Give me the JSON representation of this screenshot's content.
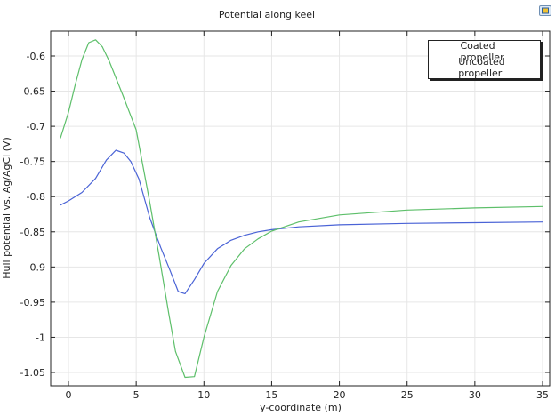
{
  "header": {
    "title": "Potential along keel",
    "export_icon": "image-export-icon"
  },
  "chart_data": {
    "type": "line",
    "title": "Potential along keel",
    "xlabel": "y-coordinate (m)",
    "ylabel": "Hull potential vs. Ag/AgCl (V)",
    "xlim": [
      -1.3,
      35.5
    ],
    "ylim": [
      -1.07,
      -0.565
    ],
    "xticks": [
      0,
      5,
      10,
      15,
      20,
      25,
      30,
      35
    ],
    "yticks": [
      -0.6,
      -0.65,
      -0.7,
      -0.75,
      -0.8,
      -0.85,
      -0.9,
      -0.95,
      -1,
      -1.05
    ],
    "grid": true,
    "legend_position": "upper right",
    "series": [
      {
        "name": "Coated propeller",
        "color": "#4a63d6",
        "x": [
          -0.6,
          0,
          1,
          2,
          2.8,
          3.5,
          4.1,
          4.6,
          5.2,
          6,
          6.8,
          7.5,
          8.1,
          8.6,
          9.3,
          10,
          11,
          12,
          13,
          14,
          15,
          17,
          20,
          25,
          30,
          35
        ],
        "y": [
          -0.812,
          -0.806,
          -0.794,
          -0.774,
          -0.748,
          -0.734,
          -0.738,
          -0.75,
          -0.775,
          -0.83,
          -0.872,
          -0.905,
          -0.935,
          -0.938,
          -0.918,
          -0.895,
          -0.874,
          -0.862,
          -0.855,
          -0.85,
          -0.847,
          -0.843,
          -0.84,
          -0.838,
          -0.837,
          -0.836
        ]
      },
      {
        "name": "Uncoated propeller",
        "color": "#5dbf6a",
        "x": [
          -0.6,
          0,
          0.5,
          1,
          1.5,
          2,
          2.5,
          3,
          4,
          5,
          6,
          6.7,
          7.4,
          7.9,
          8.6,
          9.3,
          10,
          11,
          12,
          13,
          14,
          15,
          17,
          20,
          25,
          30,
          35
        ],
        "y": [
          -0.717,
          -0.68,
          -0.641,
          -0.605,
          -0.581,
          -0.577,
          -0.587,
          -0.607,
          -0.655,
          -0.705,
          -0.808,
          -0.885,
          -0.966,
          -1.02,
          -1.057,
          -1.056,
          -1.0,
          -0.935,
          -0.898,
          -0.874,
          -0.86,
          -0.849,
          -0.836,
          -0.826,
          -0.819,
          -0.816,
          -0.814
        ]
      }
    ]
  }
}
